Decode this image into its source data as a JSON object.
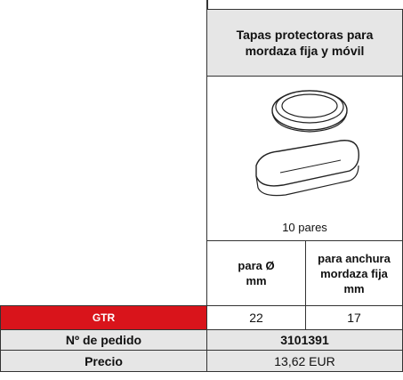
{
  "header": {
    "title": "Tapas protectoras para mordaza fija y móvil",
    "caption": "10 pares"
  },
  "columns": [
    "para Ø mm",
    "para anchura mordaza fija mm"
  ],
  "rows": [
    {
      "label": "GTR",
      "values": [
        "22",
        "17"
      ]
    }
  ],
  "order": {
    "label": "Nº de pedido",
    "value": "3101391"
  },
  "price": {
    "label": "Precio",
    "value": "13,62 EUR"
  }
}
